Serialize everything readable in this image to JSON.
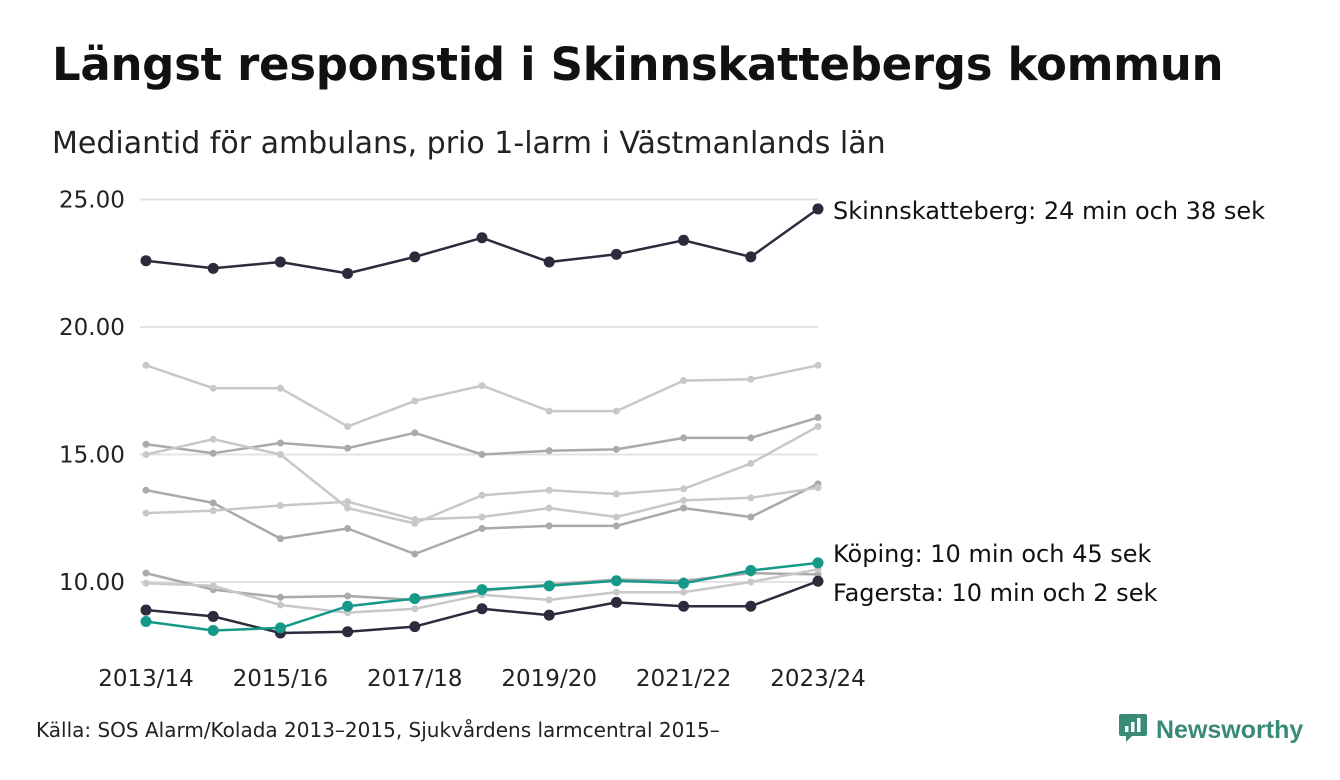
{
  "title": "Längst responstid i Skinnskattebergs kommun",
  "subtitle": "Mediantid för ambulans, prio 1-larm i Västmanlands län",
  "source": "Källa: SOS Alarm/Kolada 2013–2015, Sjukvårdens larmcentral 2015–",
  "brand": {
    "name": "Newsworthy",
    "icon": "bar-chart-speech-bubble-icon",
    "color": "#3a8a78"
  },
  "colors": {
    "dark": "#2b2b3c",
    "teal": "#17998a",
    "light_gray": "#c8c8c8",
    "mid_gray": "#aaaaaa",
    "gridline": "#e3e3e3"
  },
  "chart_data": {
    "type": "line",
    "x": [
      "2013/14",
      "2014/15",
      "2015/16",
      "2016/17",
      "2017/18",
      "2018/19",
      "2019/20",
      "2020/21",
      "2021/22",
      "2022/23",
      "2023/24"
    ],
    "xtick_labels": [
      "2013/14",
      "2015/16",
      "2017/18",
      "2019/20",
      "2021/22",
      "2023/24"
    ],
    "yticks": [
      "10.00",
      "15.00",
      "20.00",
      "25.00"
    ],
    "ylim": [
      7.5,
      25.5
    ],
    "grid": true,
    "series": [
      {
        "name": "",
        "style": "gray-light",
        "values": [
          18.5,
          17.6,
          17.6,
          16.1,
          17.1,
          17.7,
          16.7,
          16.7,
          17.9,
          17.95,
          18.5
        ]
      },
      {
        "name": "",
        "style": "gray-mid",
        "values": [
          15.4,
          15.05,
          15.45,
          15.25,
          15.85,
          15.0,
          15.15,
          15.2,
          15.65,
          15.65,
          16.45
        ]
      },
      {
        "name": "",
        "style": "gray-light",
        "values": [
          15.0,
          15.6,
          15.0,
          12.9,
          12.3,
          13.4,
          13.6,
          13.45,
          13.65,
          14.65,
          16.1
        ]
      },
      {
        "name": "",
        "style": "gray-mid",
        "values": [
          13.6,
          13.1,
          11.7,
          12.1,
          11.1,
          12.1,
          12.2,
          12.2,
          12.9,
          12.55,
          13.85
        ]
      },
      {
        "name": "",
        "style": "gray-light",
        "values": [
          12.7,
          12.8,
          13.0,
          13.15,
          12.45,
          12.55,
          12.9,
          12.55,
          13.2,
          13.3,
          13.7
        ]
      },
      {
        "name": "",
        "style": "gray-mid",
        "values": [
          10.35,
          9.7,
          9.4,
          9.45,
          9.3,
          9.65,
          9.9,
          10.1,
          10.05,
          10.35,
          10.3
        ]
      },
      {
        "name": "",
        "style": "gray-light",
        "values": [
          9.95,
          9.85,
          9.1,
          8.8,
          8.95,
          9.5,
          9.3,
          9.6,
          9.6,
          10.0,
          10.5
        ]
      },
      {
        "name": "Fagersta",
        "style": "dark",
        "values": [
          8.9,
          8.65,
          8.0,
          8.05,
          8.25,
          8.95,
          8.7,
          9.2,
          9.05,
          9.05,
          10.03
        ]
      },
      {
        "name": "Köping",
        "style": "teal",
        "values": [
          8.45,
          8.1,
          8.2,
          9.05,
          9.35,
          9.7,
          9.85,
          10.05,
          9.95,
          10.45,
          10.75
        ]
      },
      {
        "name": "Skinnskatteberg",
        "style": "dark",
        "values": [
          22.6,
          22.3,
          22.55,
          22.1,
          22.75,
          23.5,
          22.55,
          22.85,
          23.4,
          22.75,
          24.63
        ]
      }
    ],
    "annotations": [
      {
        "series": "Skinnskatteberg",
        "text": "Skinnskatteberg: 24 min och 38 sek"
      },
      {
        "series": "Köping",
        "text": "Köping: 10 min och 45 sek"
      },
      {
        "series": "Fagersta",
        "text": "Fagersta: 10 min och 2 sek"
      }
    ]
  }
}
